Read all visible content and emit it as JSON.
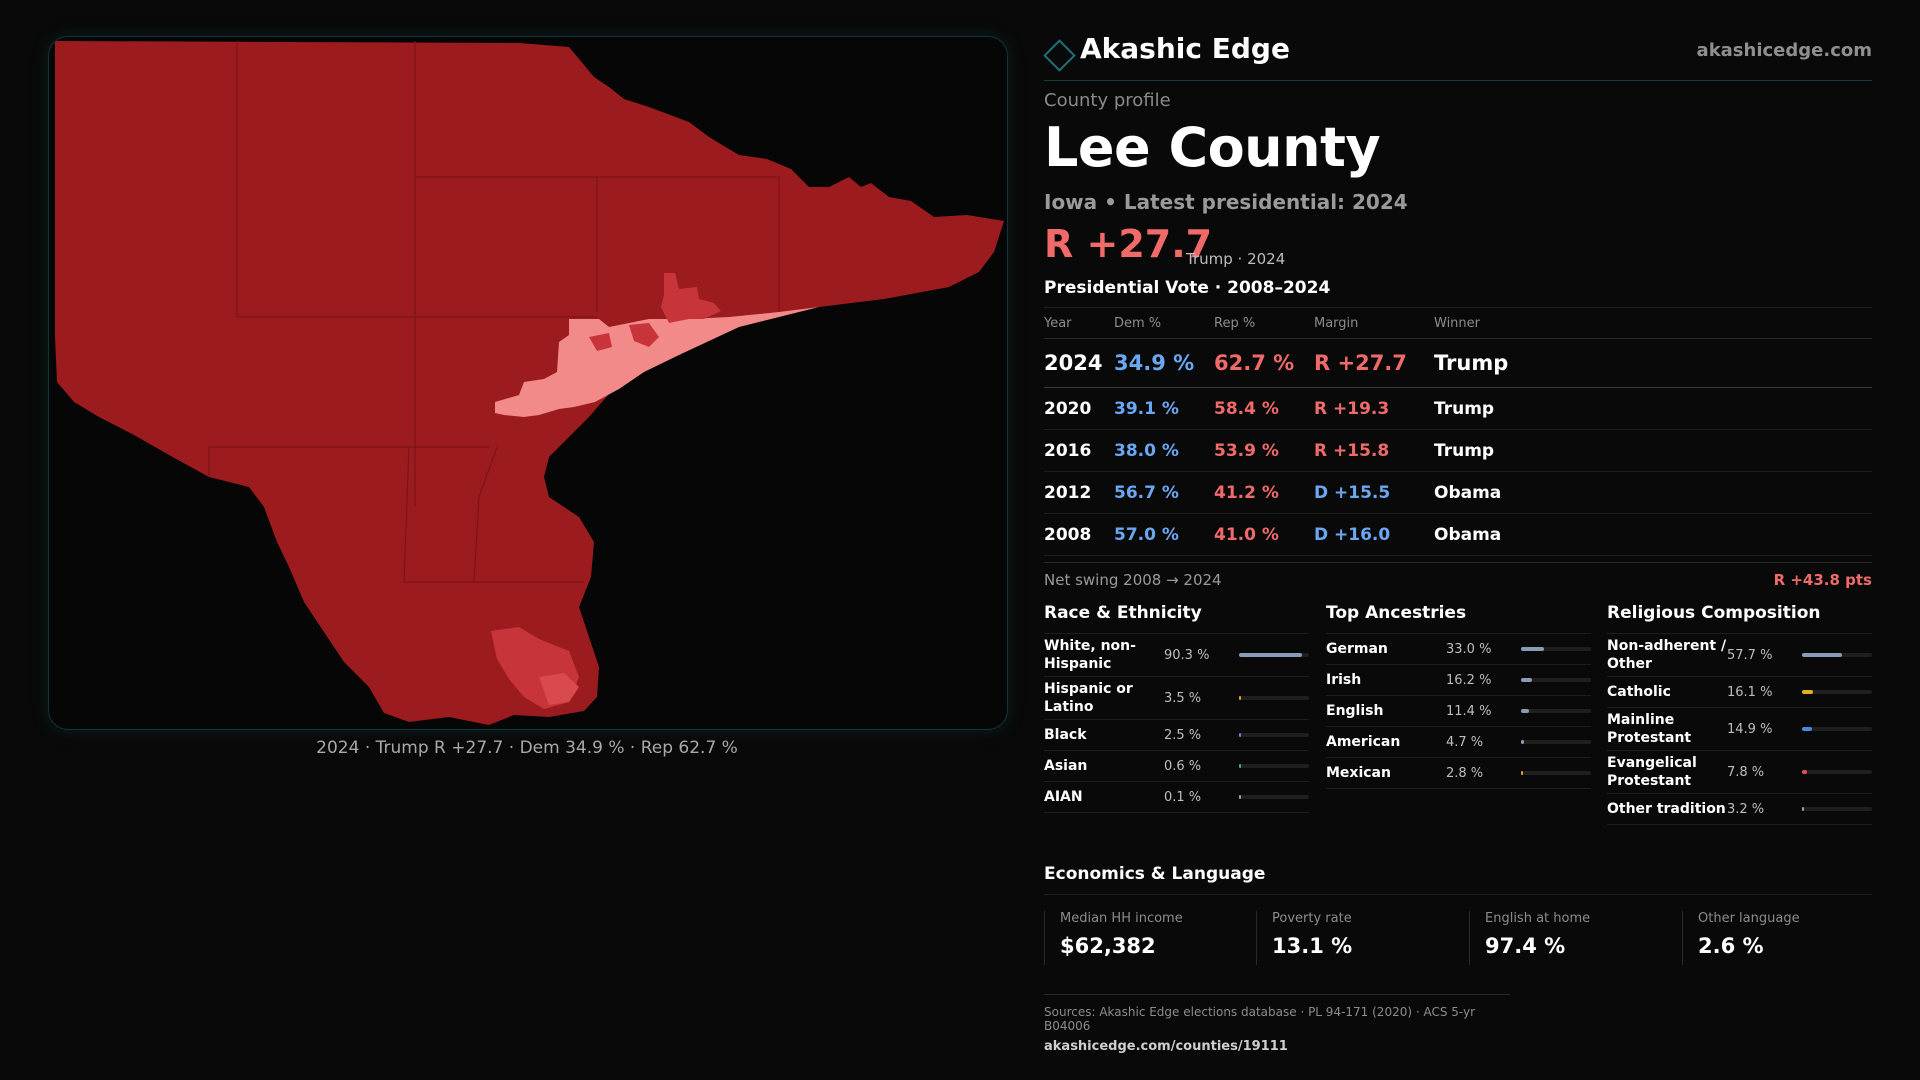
{
  "brand": {
    "name": "Akashic Edge",
    "url": "akashicedge.com"
  },
  "profile": {
    "eyebrow": "County profile",
    "title": "Lee County",
    "subtitle": "Iowa • Latest presidential: 2024",
    "headline_margin": "R +27.7",
    "headline_note": "Trump · 2024"
  },
  "map": {
    "caption": "2024 · Trump R +27.7 · Dem 34.9 % · Rep 62.7 %",
    "colors": {
      "strong_rep": "#9c1b1f",
      "lean_rep": "#c7353a",
      "tilt_rep": "#f28a8a",
      "background": "#060606"
    }
  },
  "vote": {
    "title": "Presidential Vote · 2008–2024",
    "headers": {
      "year": "Year",
      "dem": "Dem %",
      "rep": "Rep %",
      "margin": "Margin",
      "winner": "Winner"
    },
    "rows": [
      {
        "year": "2024",
        "dem": "34.9 %",
        "rep": "62.7 %",
        "margin": "R +27.7",
        "party": "R",
        "winner": "Trump"
      },
      {
        "year": "2020",
        "dem": "39.1 %",
        "rep": "58.4 %",
        "margin": "R +19.3",
        "party": "R",
        "winner": "Trump"
      },
      {
        "year": "2016",
        "dem": "38.0 %",
        "rep": "53.9 %",
        "margin": "R +15.8",
        "party": "R",
        "winner": "Trump"
      },
      {
        "year": "2012",
        "dem": "56.7 %",
        "rep": "41.2 %",
        "margin": "D +15.5",
        "party": "D",
        "winner": "Obama"
      },
      {
        "year": "2008",
        "dem": "57.0 %",
        "rep": "41.0 %",
        "margin": "D +16.0",
        "party": "D",
        "winner": "Obama"
      }
    ],
    "swing_label": "Net swing 2008 → 2024",
    "swing_value": "R +43.8 pts"
  },
  "race": {
    "title": "Race & Ethnicity",
    "color": "#8a9bb5",
    "items": [
      {
        "label": "White, non-Hispanic",
        "value": "90.3 %",
        "pct": 90.3,
        "color": "#8a9bb5"
      },
      {
        "label": "Hispanic or Latino",
        "value": "3.5 %",
        "pct": 3.5,
        "color": "#e0a030"
      },
      {
        "label": "Black",
        "value": "2.5 %",
        "pct": 2.5,
        "color": "#8a6fe0"
      },
      {
        "label": "Asian",
        "value": "0.6 %",
        "pct": 0.6,
        "color": "#4caf82"
      },
      {
        "label": "AIAN",
        "value": "0.1 %",
        "pct": 0.1,
        "color": "#a0a0a0"
      }
    ]
  },
  "ancestry": {
    "title": "Top Ancestries",
    "items": [
      {
        "label": "German",
        "value": "33.0 %",
        "pct": 33.0,
        "color": "#8a9bb5"
      },
      {
        "label": "Irish",
        "value": "16.2 %",
        "pct": 16.2,
        "color": "#8a9bb5"
      },
      {
        "label": "English",
        "value": "11.4 %",
        "pct": 11.4,
        "color": "#8a9bb5"
      },
      {
        "label": "American",
        "value": "4.7 %",
        "pct": 4.7,
        "color": "#8a9bb5"
      },
      {
        "label": "Mexican",
        "value": "2.8 %",
        "pct": 2.8,
        "color": "#e0a030"
      }
    ]
  },
  "religion": {
    "title": "Religious Composition",
    "items": [
      {
        "label": "Non-adherent / Other",
        "value": "57.7 %",
        "pct": 57.7,
        "color": "#8a9bb5"
      },
      {
        "label": "Catholic",
        "value": "16.1 %",
        "pct": 16.1,
        "color": "#e0b020"
      },
      {
        "label": "Mainline Protestant",
        "value": "14.9 %",
        "pct": 14.9,
        "color": "#4a8ad8"
      },
      {
        "label": "Evangelical Protestant",
        "value": "7.8 %",
        "pct": 7.8,
        "color": "#e05050"
      },
      {
        "label": "Other tradition",
        "value": "3.2 %",
        "pct": 3.2,
        "color": "#a0a0a0"
      }
    ]
  },
  "economics": {
    "title": "Economics & Language",
    "cards": [
      {
        "label": "Median HH income",
        "value": "$62,382"
      },
      {
        "label": "Poverty rate",
        "value": "13.1 %"
      },
      {
        "label": "English at home",
        "value": "97.4 %"
      },
      {
        "label": "Other language",
        "value": "2.6 %"
      }
    ]
  },
  "sources": {
    "text": "Sources: Akashic Edge elections database · PL 94-171 (2020) · ACS 5-yr B04006",
    "link": "akashicedge.com/counties/19111"
  }
}
